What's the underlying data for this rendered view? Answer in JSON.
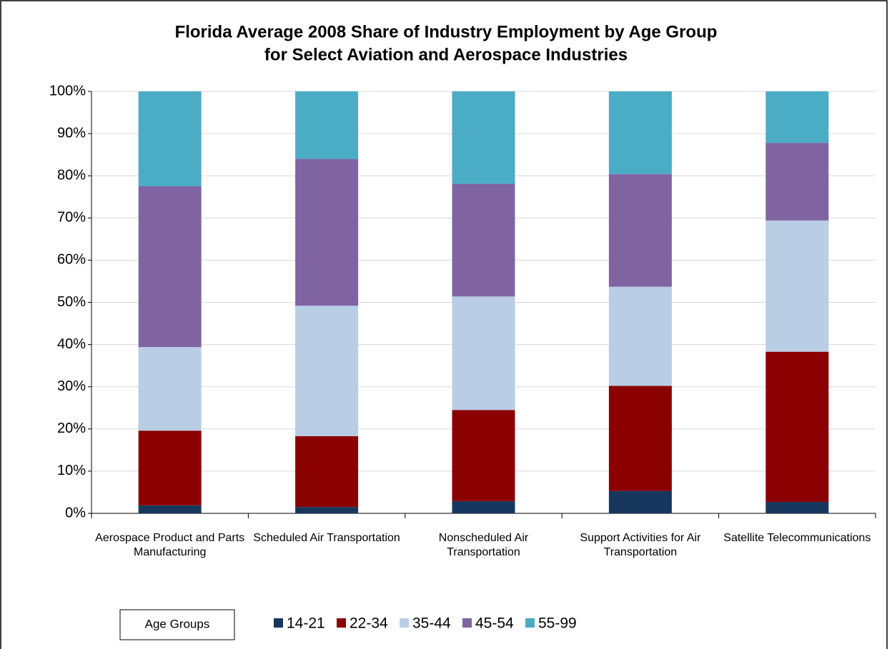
{
  "chart_data": {
    "type": "stacked_bar",
    "title": "Florida Average 2008 Share of Industry Employment by Age Group",
    "subtitle": "for Select Aviation and Aerospace Industries",
    "categories": [
      "Aerospace Product and Parts Manufacturing",
      "Scheduled Air Transportation",
      "Nonscheduled Air Transportation",
      "Support Activities for Air Transportation",
      "Satellite Telecommunications"
    ],
    "series": [
      {
        "name": "14-21",
        "color": "#17375e",
        "values": [
          1.9,
          1.5,
          2.9,
          5.3,
          2.7
        ]
      },
      {
        "name": "22-34",
        "color": "#8b0000",
        "values": [
          17.7,
          16.8,
          21.6,
          24.9,
          35.6
        ]
      },
      {
        "name": "35-44",
        "color": "#b9cde5",
        "values": [
          19.8,
          30.9,
          26.9,
          23.5,
          31.1
        ]
      },
      {
        "name": "45-54",
        "color": "#8064a2",
        "values": [
          38.1,
          34.8,
          26.7,
          26.7,
          18.4
        ]
      },
      {
        "name": "55-99",
        "color": "#4bacc6",
        "values": [
          22.5,
          16.0,
          21.9,
          19.6,
          12.2
        ]
      }
    ],
    "legend_title": "Age Groups",
    "ylim": [
      0,
      100
    ],
    "yticks": [
      {
        "value": 0,
        "label": "0%"
      },
      {
        "value": 10,
        "label": "10%"
      },
      {
        "value": 20,
        "label": "20%"
      },
      {
        "value": 30,
        "label": "30%"
      },
      {
        "value": 40,
        "label": "40%"
      },
      {
        "value": 50,
        "label": "50%"
      },
      {
        "value": 60,
        "label": "60%"
      },
      {
        "value": 70,
        "label": "70%"
      },
      {
        "value": 80,
        "label": "80%"
      },
      {
        "value": 90,
        "label": "90%"
      },
      {
        "value": 100,
        "label": "100%"
      }
    ],
    "grid": true
  }
}
